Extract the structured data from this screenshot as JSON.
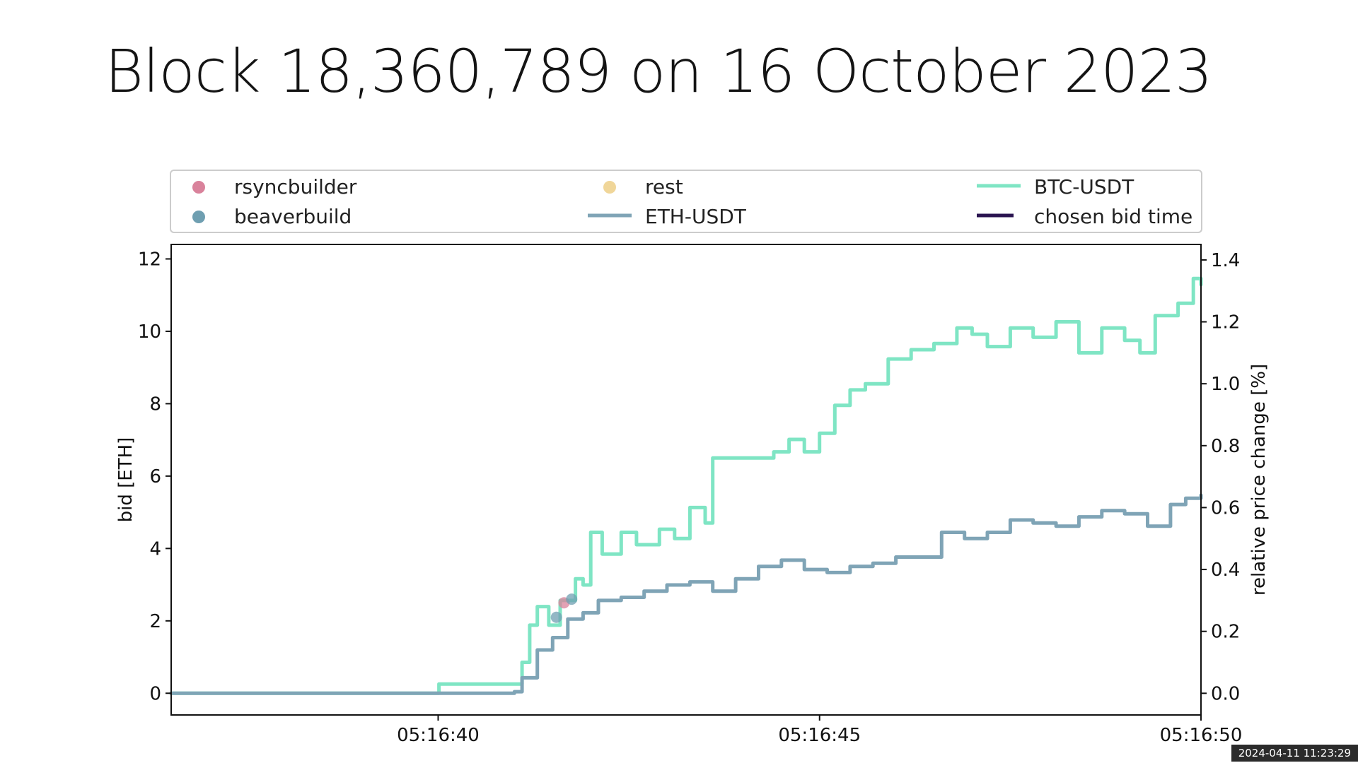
{
  "page": {
    "title": "Block 18,360,789 on 16 October 2023",
    "timestamp": "2024-04-11 11:23:29"
  },
  "chart_data": {
    "type": "line",
    "title": "",
    "xlabel": "",
    "ylabel_left": "bid [ETH]",
    "ylabel_right": "relative price change [%]",
    "xlim": [
      "05:16:36.5",
      "05:16:50"
    ],
    "ylim_left": [
      -0.6,
      12.4
    ],
    "ylim_right": [
      -0.07,
      1.45
    ],
    "x_ticks": [
      "05:16:40",
      "05:16:45",
      "05:16:50"
    ],
    "y_ticks_left": [
      "0",
      "2",
      "4",
      "6",
      "8",
      "10",
      "12"
    ],
    "y_ticks_right": [
      "0.0",
      "0.2",
      "0.4",
      "0.6",
      "0.8",
      "1.0",
      "1.2",
      "1.4"
    ],
    "grid": false,
    "legend_position": "top",
    "legend": [
      {
        "name": "rsyncbuilder",
        "marker": "dot",
        "color": "#d9829b"
      },
      {
        "name": "beaverbuild",
        "marker": "dot",
        "color": "#6f9fb1"
      },
      {
        "name": "rest",
        "marker": "dot",
        "color": "#f0d699"
      },
      {
        "name": "ETH-USDT",
        "marker": "line",
        "color": "#7fa4b6"
      },
      {
        "name": "BTC-USDT",
        "marker": "line",
        "color": "#7fe5c4"
      },
      {
        "name": "chosen bid time",
        "marker": "line",
        "color": "#2a1450"
      }
    ],
    "series": [
      {
        "name": "BTC-USDT",
        "axis": "right",
        "color": "#7fe5c4",
        "points": [
          [
            "05:16:36.5",
            0.0
          ],
          [
            "05:16:40.0",
            0.0
          ],
          [
            "05:16:40.01",
            0.03
          ],
          [
            "05:16:41.0",
            0.03
          ],
          [
            "05:16:41.1",
            0.1
          ],
          [
            "05:16:41.2",
            0.22
          ],
          [
            "05:16:41.3",
            0.28
          ],
          [
            "05:16:41.45",
            0.22
          ],
          [
            "05:16:41.6",
            0.3
          ],
          [
            "05:16:41.8",
            0.37
          ],
          [
            "05:16:41.9",
            0.35
          ],
          [
            "05:16:42.0",
            0.52
          ],
          [
            "05:16:42.15",
            0.45
          ],
          [
            "05:16:42.4",
            0.52
          ],
          [
            "05:16:42.6",
            0.48
          ],
          [
            "05:16:42.9",
            0.53
          ],
          [
            "05:16:43.1",
            0.5
          ],
          [
            "05:16:43.3",
            0.6
          ],
          [
            "05:16:43.5",
            0.55
          ],
          [
            "05:16:43.6",
            0.76
          ],
          [
            "05:16:43.9",
            0.76
          ],
          [
            "05:16:44.1",
            0.76
          ],
          [
            "05:16:44.4",
            0.78
          ],
          [
            "05:16:44.6",
            0.82
          ],
          [
            "05:16:44.8",
            0.78
          ],
          [
            "05:16:45.0",
            0.84
          ],
          [
            "05:16:45.2",
            0.93
          ],
          [
            "05:16:45.4",
            0.98
          ],
          [
            "05:16:45.6",
            1.0
          ],
          [
            "05:16:45.9",
            1.08
          ],
          [
            "05:16:46.2",
            1.11
          ],
          [
            "05:16:46.5",
            1.13
          ],
          [
            "05:16:46.8",
            1.18
          ],
          [
            "05:16:47.0",
            1.16
          ],
          [
            "05:16:47.2",
            1.12
          ],
          [
            "05:16:47.5",
            1.18
          ],
          [
            "05:16:47.8",
            1.15
          ],
          [
            "05:16:48.1",
            1.2
          ],
          [
            "05:16:48.4",
            1.1
          ],
          [
            "05:16:48.7",
            1.18
          ],
          [
            "05:16:49.0",
            1.14
          ],
          [
            "05:16:49.2",
            1.1
          ],
          [
            "05:16:49.4",
            1.22
          ],
          [
            "05:16:49.7",
            1.26
          ],
          [
            "05:16:49.9",
            1.34
          ],
          [
            "05:16:50.0",
            1.32
          ]
        ]
      },
      {
        "name": "ETH-USDT",
        "axis": "right",
        "color": "#7fa4b6",
        "points": [
          [
            "05:16:36.5",
            0.0
          ],
          [
            "05:16:41.0",
            0.005
          ],
          [
            "05:16:41.1",
            0.05
          ],
          [
            "05:16:41.3",
            0.14
          ],
          [
            "05:16:41.5",
            0.18
          ],
          [
            "05:16:41.7",
            0.24
          ],
          [
            "05:16:41.9",
            0.26
          ],
          [
            "05:16:42.1",
            0.3
          ],
          [
            "05:16:42.4",
            0.31
          ],
          [
            "05:16:42.7",
            0.33
          ],
          [
            "05:16:43.0",
            0.35
          ],
          [
            "05:16:43.3",
            0.36
          ],
          [
            "05:16:43.6",
            0.33
          ],
          [
            "05:16:43.9",
            0.37
          ],
          [
            "05:16:44.2",
            0.41
          ],
          [
            "05:16:44.5",
            0.43
          ],
          [
            "05:16:44.8",
            0.4
          ],
          [
            "05:16:45.1",
            0.39
          ],
          [
            "05:16:45.4",
            0.41
          ],
          [
            "05:16:45.7",
            0.42
          ],
          [
            "05:16:46.0",
            0.44
          ],
          [
            "05:16:46.3",
            0.44
          ],
          [
            "05:16:46.6",
            0.52
          ],
          [
            "05:16:46.9",
            0.5
          ],
          [
            "05:16:47.2",
            0.52
          ],
          [
            "05:16:47.5",
            0.56
          ],
          [
            "05:16:47.8",
            0.55
          ],
          [
            "05:16:48.1",
            0.54
          ],
          [
            "05:16:48.4",
            0.57
          ],
          [
            "05:16:48.7",
            0.59
          ],
          [
            "05:16:49.0",
            0.58
          ],
          [
            "05:16:49.3",
            0.54
          ],
          [
            "05:16:49.6",
            0.61
          ],
          [
            "05:16:49.8",
            0.63
          ],
          [
            "05:16:50.0",
            0.64
          ]
        ]
      }
    ],
    "bids": [
      {
        "builder": "rsyncbuilder",
        "x": "05:16:41.65",
        "y": 2.5
      },
      {
        "builder": "beaverbuild",
        "x": "05:16:41.55",
        "y": 2.1
      },
      {
        "builder": "beaverbuild",
        "x": "05:16:41.75",
        "y": 2.6
      }
    ]
  }
}
